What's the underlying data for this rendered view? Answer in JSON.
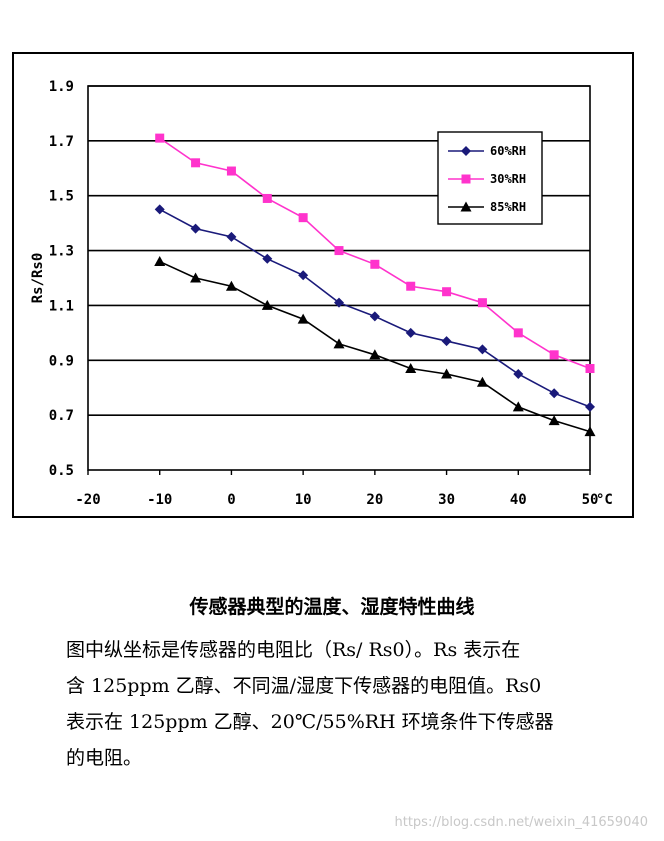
{
  "chart_data": {
    "type": "line",
    "title": "",
    "xlabel": "",
    "ylabel": "Rs/Rs0",
    "x_unit": "°C",
    "xlim": [
      -20,
      50
    ],
    "ylim": [
      0.5,
      1.9
    ],
    "x_ticks": [
      -20,
      -10,
      0,
      10,
      20,
      30,
      40,
      50
    ],
    "y_ticks": [
      0.5,
      0.7,
      0.9,
      1.1,
      1.3,
      1.5,
      1.7,
      1.9
    ],
    "y_tick_labels": [
      "0.5",
      "0.7",
      "0.9",
      "1.1",
      "1.3",
      "1.5",
      "1.7",
      "1.9"
    ],
    "x_tick_labels": [
      "-20",
      "-10",
      "0",
      "10",
      "20",
      "30",
      "40",
      "50"
    ],
    "grid": "horizontal",
    "legend_position": "top-right",
    "x": [
      -10,
      -5,
      0,
      5,
      10,
      15,
      20,
      25,
      30,
      35,
      40,
      45,
      50
    ],
    "series": [
      {
        "name": "60%RH",
        "color": "#1a1a7a",
        "marker": "diamond",
        "values": [
          1.45,
          1.38,
          1.35,
          1.27,
          1.21,
          1.11,
          1.06,
          1.0,
          0.97,
          0.94,
          0.85,
          0.78,
          0.73
        ]
      },
      {
        "name": "30%RH",
        "color": "#ff33cc",
        "marker": "square",
        "values": [
          1.71,
          1.62,
          1.59,
          1.49,
          1.42,
          1.3,
          1.25,
          1.17,
          1.15,
          1.11,
          1.0,
          0.92,
          0.87
        ]
      },
      {
        "name": "85%RH",
        "color": "#000000",
        "marker": "triangle",
        "values": [
          1.26,
          1.2,
          1.17,
          1.1,
          1.05,
          0.96,
          0.92,
          0.87,
          0.85,
          0.82,
          0.73,
          0.68,
          0.64
        ]
      }
    ]
  },
  "caption": "传感器典型的温度、湿度特性曲线",
  "description": {
    "line1": "图中纵坐标是传感器的电阻比（Rs/ Rs0）。Rs 表示在",
    "line2": "含 125ppm 乙醇、不同温/湿度下传感器的电阻值。Rs0",
    "line3": "表示在 125ppm 乙醇、20℃/55%RH 环境条件下传感器",
    "line4": "的电阻。"
  },
  "watermark": "https://blog.csdn.net/weixin_41659040"
}
